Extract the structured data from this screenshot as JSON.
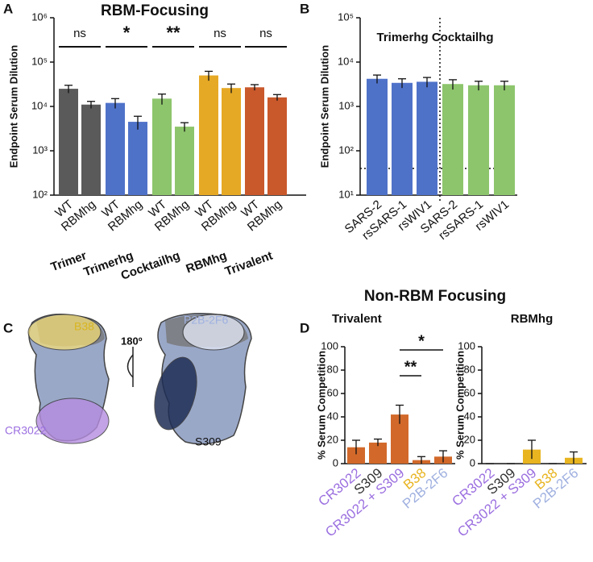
{
  "panel_labels": [
    "A",
    "B",
    "C",
    "D"
  ],
  "section_title": "Non-RBM Focusing",
  "structure": {
    "labels": [
      "B38",
      "P2B-2F6",
      "CR3022",
      "S309"
    ],
    "rotation": "180º"
  },
  "chart_data": [
    {
      "type": "bar",
      "title": "RBM-Focusing",
      "ylabel": "Endpoint Serum Dilution",
      "log_scale": true,
      "ylim": [
        100,
        1000000
      ],
      "yticks": [
        {
          "value": 100,
          "label": "10²"
        },
        {
          "value": 1000,
          "label": "10³"
        },
        {
          "value": 10000,
          "label": "10⁴"
        },
        {
          "value": 100000,
          "label": "10⁵"
        },
        {
          "value": 1000000,
          "label": "10⁶"
        }
      ],
      "categories": [
        "WT",
        "RBMhg",
        "WT",
        "RBMhg",
        "WT",
        "RBMhg",
        "WT",
        "RBMhg",
        "WT",
        "RBMhg"
      ],
      "groups": [
        "Trimer",
        "Trimerhg",
        "Cocktailhg",
        "RBMhg",
        "Trivalent"
      ],
      "significance": [
        "ns",
        "*",
        "**",
        "ns",
        "ns"
      ],
      "values": [
        25000,
        11000,
        12000,
        4500,
        15000,
        3500,
        50000,
        26000,
        27000,
        16000
      ],
      "errors": [
        5000,
        2000,
        3000,
        1500,
        4000,
        800,
        12000,
        6000,
        4000,
        2500
      ],
      "colors": [
        "#5a5a5a",
        "#5a5a5a",
        "#4f72c9",
        "#4f72c9",
        "#8dc56c",
        "#8dc56c",
        "#e6a925",
        "#e6a925",
        "#c9582b",
        "#c9582b"
      ]
    },
    {
      "type": "bar",
      "title": "Trimerhg Cocktailhg",
      "ylabel": "Endpoint Serum Dilution",
      "log_scale": true,
      "ylim": [
        10,
        100000
      ],
      "yticks": [
        {
          "value": 10,
          "label": "10¹"
        },
        {
          "value": 100,
          "label": "10²"
        },
        {
          "value": 1000,
          "label": "10³"
        },
        {
          "value": 10000,
          "label": "10⁴"
        },
        {
          "value": 100000,
          "label": "10⁵"
        }
      ],
      "reference_line": 40,
      "categories": [
        "SARS-2",
        "rsSARS-1",
        "rsWIV1",
        "SARS-2",
        "rsSARS-1",
        "rsWIV1"
      ],
      "values": [
        4200,
        3400,
        3600,
        3200,
        3000,
        3000
      ],
      "errors": [
        900,
        800,
        900,
        800,
        700,
        700
      ],
      "colors": [
        "#4f72c9",
        "#4f72c9",
        "#4f72c9",
        "#8dc56c",
        "#8dc56c",
        "#8dc56c"
      ]
    },
    {
      "type": "bar",
      "title": "Trivalent",
      "ylabel": "% Serum Competition",
      "ylim": [
        0,
        100
      ],
      "yticks": [
        0,
        20,
        40,
        60,
        80,
        100
      ],
      "categories": [
        "CR3022",
        "S309",
        "CR3022 + S309",
        "B38",
        "P2B-2F6"
      ],
      "category_colors": [
        "#9b6fe0",
        "#333333",
        "#9b6fe0",
        "#e8b420",
        "#9fb0e0"
      ],
      "values": [
        14,
        18,
        42,
        3,
        6
      ],
      "errors": [
        6,
        3,
        8,
        3,
        5
      ],
      "colors": [
        "#d2692a",
        "#d2692a",
        "#d2692a",
        "#d2692a",
        "#d2692a"
      ],
      "comparisons": [
        {
          "label": "**",
          "from": "CR3022 + S309",
          "to": "B38"
        },
        {
          "label": "*",
          "from": "CR3022 + S309",
          "to": "P2B-2F6"
        }
      ]
    },
    {
      "type": "bar",
      "title": "RBMhg",
      "ylabel": "% Serum Competition",
      "ylim": [
        0,
        100
      ],
      "yticks": [
        0,
        20,
        40,
        60,
        80,
        100
      ],
      "categories": [
        "CR3022",
        "S309",
        "CR3022 + S309",
        "B38",
        "P2B-2F6"
      ],
      "category_colors": [
        "#9b6fe0",
        "#333333",
        "#9b6fe0",
        "#e8b420",
        "#9fb0e0"
      ],
      "values": [
        0,
        0,
        12,
        0,
        5
      ],
      "errors": [
        0,
        0,
        8,
        0,
        5
      ],
      "colors": [
        "#e8b420",
        "#e8b420",
        "#e8b420",
        "#e8b420",
        "#e8b420"
      ]
    }
  ]
}
